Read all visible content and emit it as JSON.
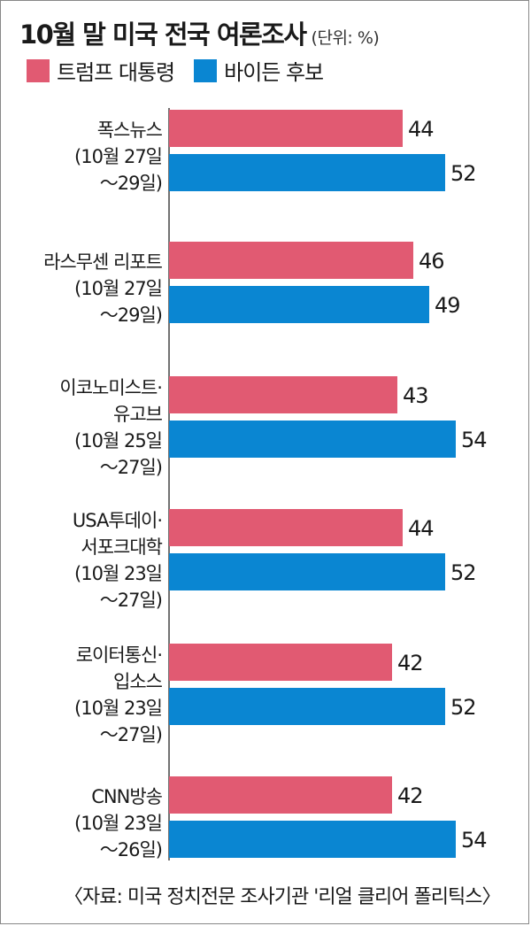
{
  "header": {
    "title": "10월 말 미국 전국 여론조사",
    "unit": "(단위: %)"
  },
  "legend": [
    {
      "label": "트럼프 대통령",
      "color": "#e15a72"
    },
    {
      "label": "바이든 후보",
      "color": "#0a86d2"
    }
  ],
  "source": "〈자료: 미국 정치전문 조사기관 '리얼 클리어 폴리틱스〉",
  "chart_data": {
    "type": "bar",
    "orientation": "horizontal",
    "title": "10월 말 미국 전국 여론조사",
    "unit": "(단위: %)",
    "categories": [
      [
        "폭스뉴스",
        "(10월 27일",
        "～29일)"
      ],
      [
        "라스무센 리포트",
        "(10월 27일",
        "～29일)"
      ],
      [
        "이코노미스트·",
        "유고브",
        "(10월 25일",
        "～27일)"
      ],
      [
        "USA투데이·",
        "서포크대학",
        "(10월 23일",
        "～27일)"
      ],
      [
        "로이터통신·",
        "입소스",
        "(10월 23일",
        "～27일)"
      ],
      [
        "CNN방송",
        "(10월 23일",
        "～26일)"
      ]
    ],
    "series": [
      {
        "name": "트럼프 대통령",
        "color": "#e15a72",
        "values": [
          44,
          46,
          43,
          44,
          42,
          42
        ]
      },
      {
        "name": "바이든 후보",
        "color": "#0a86d2",
        "values": [
          52,
          49,
          54,
          52,
          52,
          54
        ]
      }
    ],
    "grid": false,
    "legend_position": "top-left"
  }
}
